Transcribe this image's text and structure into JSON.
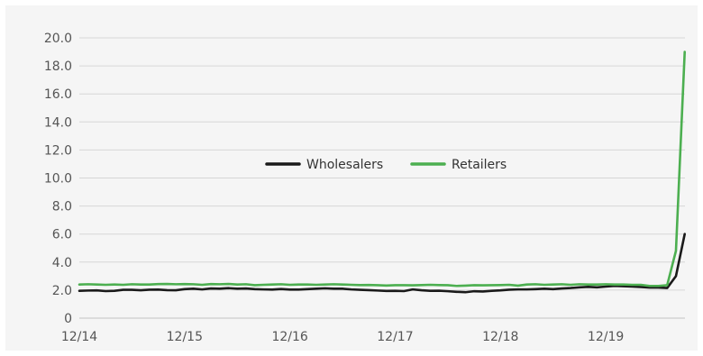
{
  "chart_data": {
    "type": "line",
    "title": "",
    "xlabel": "",
    "ylabel": "",
    "ylim": [
      0,
      20
    ],
    "grid": true,
    "legend_position": "center",
    "y_ticks": [
      "0",
      "2.0",
      "4.0",
      "6.0",
      "8.0",
      "10.0",
      "12.0",
      "14.0",
      "16.0",
      "18.0",
      "20.0"
    ],
    "x_ticks": [
      "12/14",
      "12/15",
      "12/16",
      "12/17",
      "12/18",
      "12/19"
    ],
    "x_index_per_tick": 12,
    "series": [
      {
        "name": "Wholesalers",
        "color": "#1a1a1a",
        "values": [
          1.95,
          1.97,
          1.98,
          1.93,
          1.95,
          2.02,
          2.02,
          1.99,
          2.03,
          2.04,
          2.0,
          1.99,
          2.07,
          2.1,
          2.05,
          2.12,
          2.1,
          2.14,
          2.1,
          2.12,
          2.07,
          2.05,
          2.04,
          2.08,
          2.04,
          2.04,
          2.07,
          2.1,
          2.13,
          2.1,
          2.1,
          2.05,
          2.02,
          2.0,
          1.97,
          1.94,
          1.95,
          1.93,
          2.05,
          1.99,
          1.95,
          1.96,
          1.92,
          1.88,
          1.85,
          1.92,
          1.9,
          1.95,
          1.98,
          2.03,
          2.05,
          2.05,
          2.07,
          2.1,
          2.07,
          2.12,
          2.15,
          2.2,
          2.23,
          2.2,
          2.25,
          2.3,
          2.28,
          2.25,
          2.22,
          2.18,
          2.18,
          2.15,
          3.0,
          6.0
        ]
      },
      {
        "name": "Retailers",
        "color": "#4caf50",
        "values": [
          2.4,
          2.42,
          2.4,
          2.38,
          2.4,
          2.38,
          2.42,
          2.4,
          2.4,
          2.43,
          2.44,
          2.42,
          2.43,
          2.42,
          2.38,
          2.43,
          2.42,
          2.44,
          2.4,
          2.42,
          2.35,
          2.38,
          2.4,
          2.42,
          2.38,
          2.4,
          2.4,
          2.38,
          2.4,
          2.42,
          2.4,
          2.38,
          2.36,
          2.37,
          2.35,
          2.33,
          2.35,
          2.35,
          2.34,
          2.36,
          2.38,
          2.36,
          2.35,
          2.3,
          2.32,
          2.35,
          2.34,
          2.35,
          2.36,
          2.38,
          2.32,
          2.4,
          2.42,
          2.38,
          2.4,
          2.42,
          2.38,
          2.42,
          2.4,
          2.4,
          2.42,
          2.4,
          2.4,
          2.38,
          2.38,
          2.3,
          2.3,
          2.35,
          4.8,
          19.0
        ]
      }
    ]
  }
}
